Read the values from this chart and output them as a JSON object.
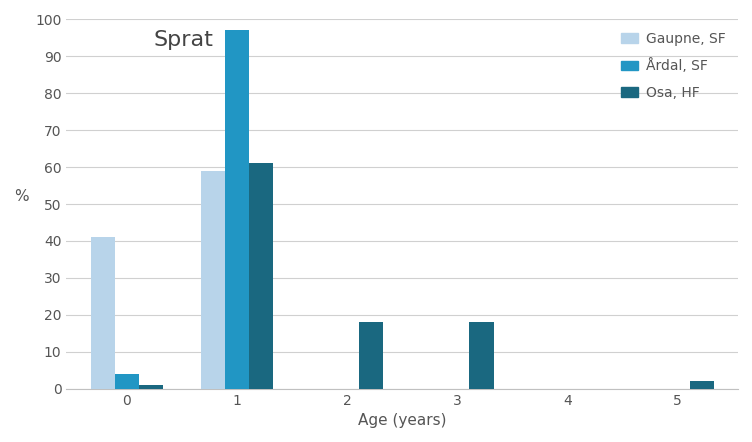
{
  "title": "Sprat",
  "xlabel": "Age (years)",
  "ylabel": "%",
  "ylim": [
    0,
    100
  ],
  "yticks": [
    0,
    10,
    20,
    30,
    40,
    50,
    60,
    70,
    80,
    90,
    100
  ],
  "xticks": [
    0,
    1,
    2,
    3,
    4,
    5
  ],
  "ages": [
    0,
    1,
    2,
    3,
    4,
    5
  ],
  "series": {
    "Gaupne, SF": {
      "values": [
        41,
        59,
        0,
        0,
        0,
        0
      ],
      "color": "#b8d4ea"
    },
    "Årdal, SF": {
      "values": [
        4,
        97,
        0,
        0,
        0,
        0
      ],
      "color": "#2196c4"
    },
    "Osa, HF": {
      "values": [
        1,
        61,
        18,
        18,
        0,
        2
      ],
      "color": "#1a6880"
    }
  },
  "bar_width": 0.22,
  "background_color": "#ffffff",
  "grid_color": "#d0d0d0",
  "spine_color": "#c0c0c0",
  "legend_labels": [
    "Gaupne, SF",
    "Årdal, SF",
    "Osa, HF"
  ],
  "legend_colors": [
    "#b8d4ea",
    "#2196c4",
    "#1a6880"
  ],
  "title_fontsize": 16,
  "axis_fontsize": 11,
  "legend_fontsize": 10
}
